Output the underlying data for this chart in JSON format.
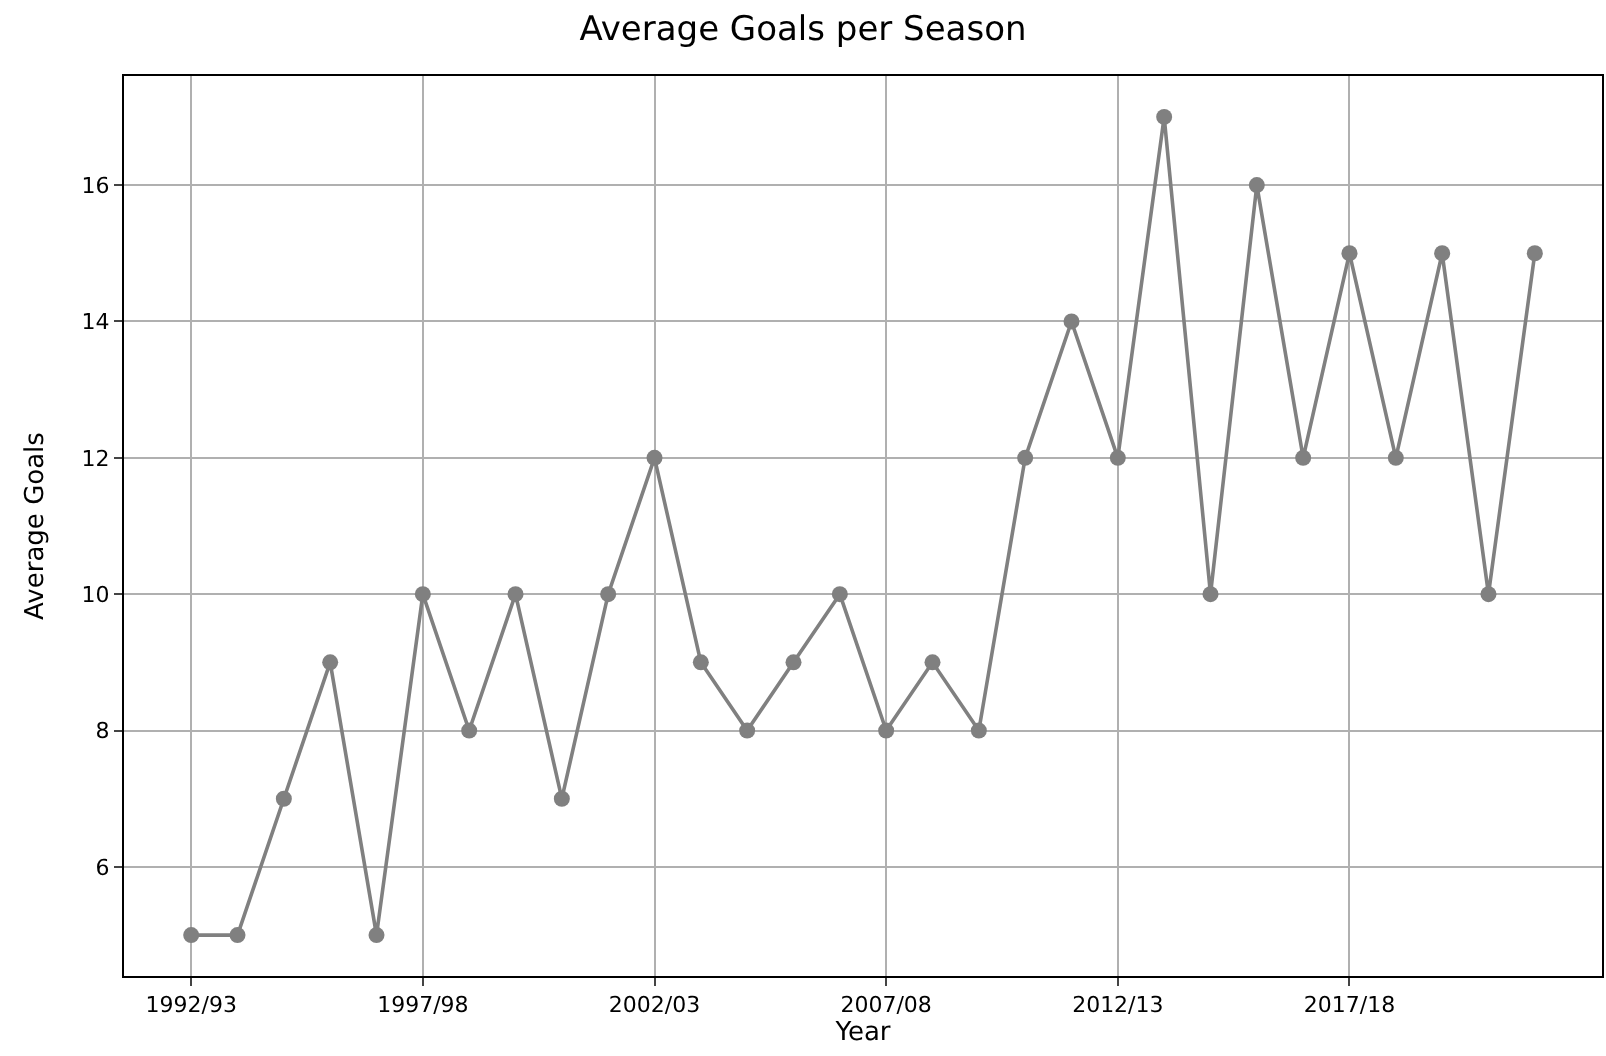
{
  "chart_data": {
    "type": "line",
    "title": "Average Goals per Season",
    "xlabel": "Year",
    "ylabel": "Average Goals",
    "categories": [
      "1992/93",
      null,
      null,
      null,
      null,
      "1997/98",
      null,
      null,
      null,
      null,
      "2002/03",
      null,
      null,
      null,
      null,
      "2007/08",
      null,
      null,
      null,
      null,
      "2012/13",
      null,
      null,
      null,
      null,
      "2017/18",
      null,
      null,
      null,
      null
    ],
    "series": [
      {
        "color": "#808080",
        "values": [
          5,
          5,
          7,
          9,
          5,
          10,
          8,
          10,
          7,
          10,
          12,
          9,
          8,
          9,
          10,
          8,
          9,
          8,
          12,
          14,
          12,
          17,
          10,
          16,
          12,
          15,
          12,
          15,
          10,
          15
        ]
      }
    ],
    "ylim": [
      4.4,
      17.6
    ],
    "yticks": [
      6,
      8,
      10,
      12,
      14,
      16
    ],
    "grid": true,
    "marker": "circle",
    "line_style": "solid"
  }
}
